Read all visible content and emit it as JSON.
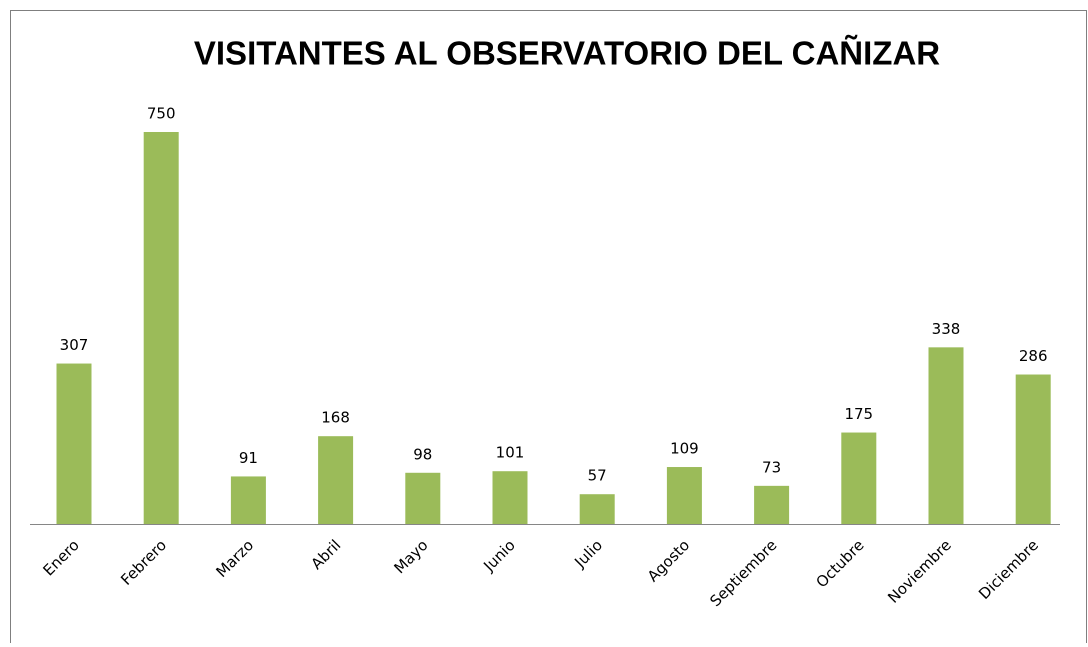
{
  "chart_data": {
    "type": "bar",
    "title": "VISITANTES AL OBSERVATORIO DEL CAÑIZAR",
    "categories": [
      "Enero",
      "Febrero",
      "Marzo",
      "Abril",
      "Mayo",
      "Junio",
      "Julio",
      "Agosto",
      "Septiembre",
      "Octubre",
      "Noviembre",
      "Diciembre"
    ],
    "values": [
      307,
      750,
      91,
      168,
      98,
      101,
      57,
      109,
      73,
      175,
      338,
      286
    ],
    "color": "#9bbb59"
  }
}
